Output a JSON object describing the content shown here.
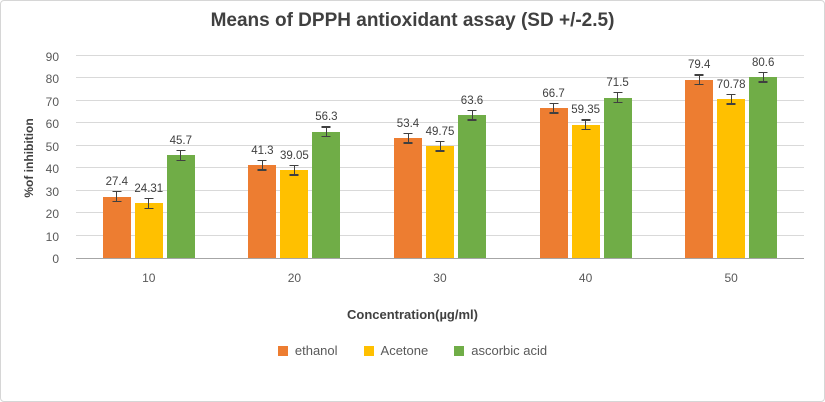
{
  "chart_data": {
    "type": "bar",
    "title": "Means of DPPH antioxidant assay (SD +/-2.5)",
    "xlabel": "Concentration(µg/ml)",
    "ylabel": "%of inhibition",
    "categories": [
      "10",
      "20",
      "30",
      "40",
      "50"
    ],
    "series": [
      {
        "name": "ethanol",
        "color": "#ED7D31",
        "values": [
          27.4,
          41.3,
          53.4,
          66.7,
          79.4
        ]
      },
      {
        "name": "Acetone",
        "color": "#FFC000",
        "values": [
          24.31,
          39.05,
          49.75,
          59.35,
          70.78
        ]
      },
      {
        "name": "ascorbic acid",
        "color": "#70AD47",
        "values": [
          45.7,
          56.3,
          63.6,
          71.5,
          80.6
        ]
      }
    ],
    "error_bar": 2.5,
    "ylim": [
      0,
      90
    ],
    "ytick_step": 10,
    "grid": true,
    "legend_position": "bottom"
  }
}
